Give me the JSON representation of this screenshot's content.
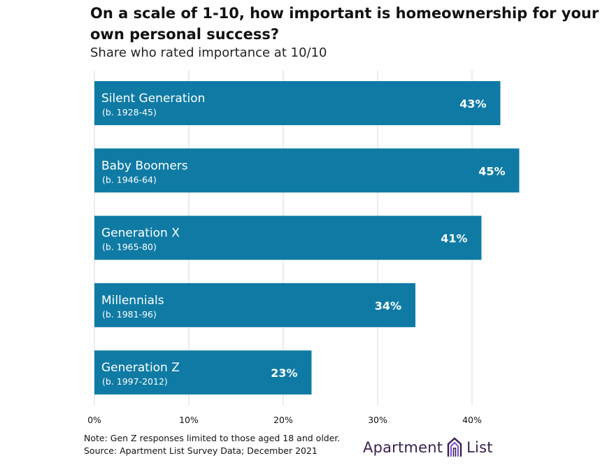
{
  "header": {
    "title": "On a scale of 1-10, how important is homeownership for your own personal success?",
    "subtitle": "Share who rated importance at 10/10"
  },
  "chart_data": {
    "type": "bar",
    "orientation": "horizontal",
    "title": "On a scale of 1-10, how important is homeownership for your own personal success?",
    "subtitle": "Share who rated importance at 10/10",
    "categories": [
      "Silent Generation",
      "Baby Boomers",
      "Generation X",
      "Millennials",
      "Generation Z"
    ],
    "category_sublabels": [
      "(b. 1928-45)",
      "(b. 1946-64)",
      "(b. 1965-80)",
      "(b. 1981-96)",
      "(b. 1997-2012)"
    ],
    "values": [
      43,
      45,
      41,
      34,
      23
    ],
    "value_labels": [
      "43%",
      "45%",
      "41%",
      "34%",
      "23%"
    ],
    "xlim": [
      0,
      40
    ],
    "ticks": [
      0,
      10,
      20,
      30,
      40
    ],
    "tick_labels": [
      "0%",
      "10%",
      "20%",
      "30%",
      "40%"
    ],
    "grid": true,
    "bar_color": "#0f7ba5",
    "grid_color": "#d9d9d9"
  },
  "footer": {
    "note": "Note: Gen Z responses limited to those aged 18 and older.",
    "source": "Source: Apartment List Survey Data; December 2021"
  },
  "logo": {
    "left_text": "Apartment",
    "right_text": "List",
    "icon": "apartment-list-logo-icon",
    "color": "#3a1f4f",
    "accent": "#7b4fd6"
  }
}
